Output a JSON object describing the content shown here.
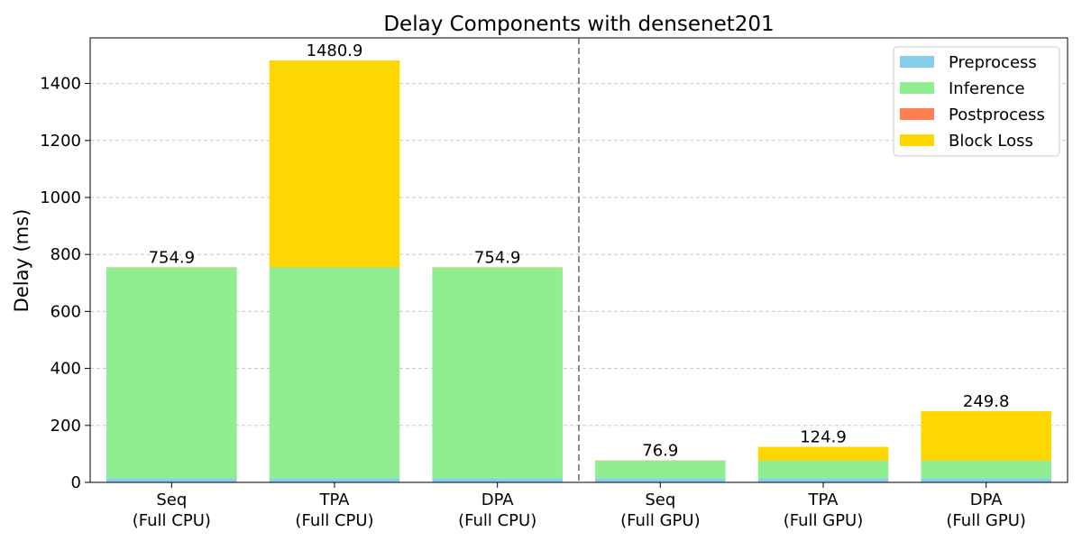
{
  "chart_data": {
    "type": "bar",
    "stacked": true,
    "title": "Delay Components with densenet201",
    "xlabel": "",
    "ylabel": "Delay (ms)",
    "ylim": [
      0,
      1560
    ],
    "yticks": [
      0,
      200,
      400,
      600,
      800,
      1000,
      1200,
      1400
    ],
    "grid": "y-dashed",
    "legend_position": "top-right",
    "categories": [
      [
        "Seq",
        "(Full CPU)"
      ],
      [
        "TPA",
        "(Full CPU)"
      ],
      [
        "DPA",
        "(Full CPU)"
      ],
      [
        "Seq",
        "(Full GPU)"
      ],
      [
        "TPA",
        "(Full GPU)"
      ],
      [
        "DPA",
        "(Full GPU)"
      ]
    ],
    "divider_after_index": 2,
    "series": [
      {
        "name": "Preprocess",
        "color": "#87CEEB",
        "values": [
          15,
          15,
          15,
          15,
          15,
          15
        ]
      },
      {
        "name": "Inference",
        "color": "#90EE90",
        "values": [
          738.9,
          738.9,
          738.9,
          60.9,
          60.9,
          60.9
        ]
      },
      {
        "name": "Postprocess",
        "color": "#FF7F50",
        "values": [
          1,
          1,
          1,
          1,
          1,
          1
        ]
      },
      {
        "name": "Block Loss",
        "color": "#FFD700",
        "values": [
          0,
          726,
          0,
          0,
          48,
          172.9
        ]
      }
    ],
    "totals": [
      754.9,
      1480.9,
      754.9,
      76.9,
      124.9,
      249.8
    ],
    "total_labels": [
      "754.9",
      "1480.9",
      "754.9",
      "76.9",
      "124.9",
      "249.8"
    ]
  }
}
